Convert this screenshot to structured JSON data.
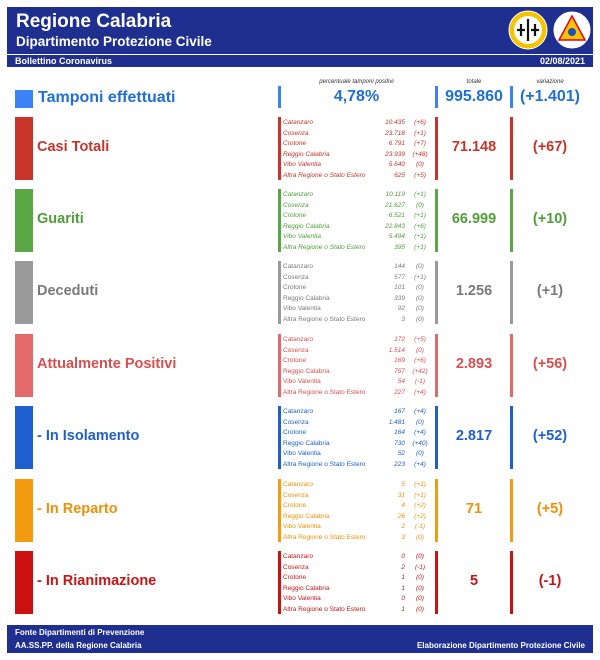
{
  "header": {
    "title": "Regione Calabria",
    "subtitle": "Dipartimento Protezione Civile",
    "bulletin": "Bollettino Coronavirus",
    "date": "02/08/2021"
  },
  "columns": {
    "percent": "percentuale tamponi positivi",
    "total": "totale",
    "change": "variazione"
  },
  "tamponi": {
    "label": "Tamponi effettuati",
    "percent": "4,78%",
    "total": "995.860",
    "change": "(+1.401)",
    "color": "#3b82f6"
  },
  "sections": [
    {
      "label": "Casi Totali",
      "color": "#c8342a",
      "text_color": "#c8342a",
      "italic": true,
      "total": "71.148",
      "change": "(+67)",
      "rows": [
        {
          "prov": "Catanzaro",
          "value": "10.435",
          "delta": "(+6)"
        },
        {
          "prov": "Cosenza",
          "value": "23.718",
          "delta": "(+1)"
        },
        {
          "prov": "Crotone",
          "value": "6.791",
          "delta": "(+7)"
        },
        {
          "prov": "Reggio Calabria",
          "value": "23.939",
          "delta": "(+48)"
        },
        {
          "prov": "Vibo Valentia",
          "value": "5.640",
          "delta": "(0)"
        },
        {
          "prov": "Altra Regione o Stato Estero",
          "value": "625",
          "delta": "(+5)"
        }
      ]
    },
    {
      "label": "Guariti",
      "color": "#5aa845",
      "text_color": "#4f9e3a",
      "italic": true,
      "total": "66.999",
      "change": "(+10)",
      "rows": [
        {
          "prov": "Catanzaro",
          "value": "10.119",
          "delta": "(+1)"
        },
        {
          "prov": "Cosenza",
          "value": "21.627",
          "delta": "(0)"
        },
        {
          "prov": "Crotone",
          "value": "6.521",
          "delta": "(+1)"
        },
        {
          "prov": "Reggio Calabria",
          "value": "22.843",
          "delta": "(+6)"
        },
        {
          "prov": "Vibo Valentia",
          "value": "5.494",
          "delta": "(+1)"
        },
        {
          "prov": "Altra Regione o Stato Estero",
          "value": "395",
          "delta": "(+1)"
        }
      ]
    },
    {
      "label": "Deceduti",
      "color": "#9a9a9a",
      "text_color": "#7a7a7a",
      "italic": false,
      "total": "1.256",
      "change": "(+1)",
      "rows": [
        {
          "prov": "Catanzaro",
          "value": "144",
          "delta": "(0)"
        },
        {
          "prov": "Cosenza",
          "value": "577",
          "delta": "(+1)"
        },
        {
          "prov": "Crotone",
          "value": "101",
          "delta": "(0)"
        },
        {
          "prov": "Reggio Calabria",
          "value": "339",
          "delta": "(0)"
        },
        {
          "prov": "Vibo Valentia",
          "value": "92",
          "delta": "(0)"
        },
        {
          "prov": "Altra Regione o Stato Estero",
          "value": "3",
          "delta": "(0)"
        }
      ]
    },
    {
      "label": "Attualmente Positivi",
      "color": "#e26a6a",
      "text_color": "#d94f4f",
      "italic": false,
      "total": "2.893",
      "change": "(+56)",
      "rows": [
        {
          "prov": "Catanzaro",
          "value": "172",
          "delta": "(+5)"
        },
        {
          "prov": "Cosenza",
          "value": "1.514",
          "delta": "(0)"
        },
        {
          "prov": "Crotone",
          "value": "169",
          "delta": "(+6)"
        },
        {
          "prov": "Reggio Calabria",
          "value": "757",
          "delta": "(+42)"
        },
        {
          "prov": "Vibo Valentia",
          "value": "54",
          "delta": "(-1)"
        },
        {
          "prov": "Altra Regione o Stato Estero",
          "value": "227",
          "delta": "(+4)"
        }
      ]
    },
    {
      "label": "- In Isolamento",
      "color": "#1f5fd0",
      "text_color": "#1f5fd0",
      "italic": false,
      "total": "2.817",
      "change": "(+52)",
      "rows": [
        {
          "prov": "Catanzaro",
          "value": "167",
          "delta": "(+4)"
        },
        {
          "prov": "Cosenza",
          "value": "1.481",
          "delta": "(0)"
        },
        {
          "prov": "Crotone",
          "value": "164",
          "delta": "(+4)"
        },
        {
          "prov": "Reggio Calabria",
          "value": "730",
          "delta": "(+40)"
        },
        {
          "prov": "Vibo Valentia",
          "value": "52",
          "delta": "(0)"
        },
        {
          "prov": "Altra Regione o Stato Estero",
          "value": "223",
          "delta": "(+4)"
        }
      ]
    },
    {
      "label": "- In Reparto",
      "color": "#f39c12",
      "text_color": "#f0900a",
      "italic": false,
      "total": "71",
      "change": "(+5)",
      "rows": [
        {
          "prov": "Catanzaro",
          "value": "5",
          "delta": "(+1)"
        },
        {
          "prov": "Cosenza",
          "value": "31",
          "delta": "(+1)"
        },
        {
          "prov": "Crotone",
          "value": "4",
          "delta": "(+2)"
        },
        {
          "prov": "Reggio Calabria",
          "value": "26",
          "delta": "(+2)"
        },
        {
          "prov": "Vibo Valentia",
          "value": "2",
          "delta": "(-1)"
        },
        {
          "prov": "Altra Regione o Stato Estero",
          "value": "3",
          "delta": "(0)"
        }
      ]
    },
    {
      "label": "- In Rianimazione",
      "color": "#cc1111",
      "text_color": "#c81414",
      "italic": false,
      "total": "5",
      "change": "(-1)",
      "rows": [
        {
          "prov": "Catanzaro",
          "value": "0",
          "delta": "(0)"
        },
        {
          "prov": "Cosenza",
          "value": "2",
          "delta": "(-1)"
        },
        {
          "prov": "Crotone",
          "value": "1",
          "delta": "(0)"
        },
        {
          "prov": "Reggio Calabria",
          "value": "1",
          "delta": "(0)"
        },
        {
          "prov": "Vibo Valentia",
          "value": "0",
          "delta": "(0)"
        },
        {
          "prov": "Altra Regione o Stato Estero",
          "value": "1",
          "delta": "(0)"
        }
      ]
    }
  ],
  "footer": {
    "source_line1": "Fonte Dipartimenti di Prevenzione",
    "source_line2": "AA.SS.PP.  della Regione Calabria",
    "credit": "Elaborazione Dipartimento Protezione Civile"
  },
  "logos": {
    "region": "calabria-region-crest-icon",
    "civil_protection": "protezione-civile-emblem-icon"
  }
}
